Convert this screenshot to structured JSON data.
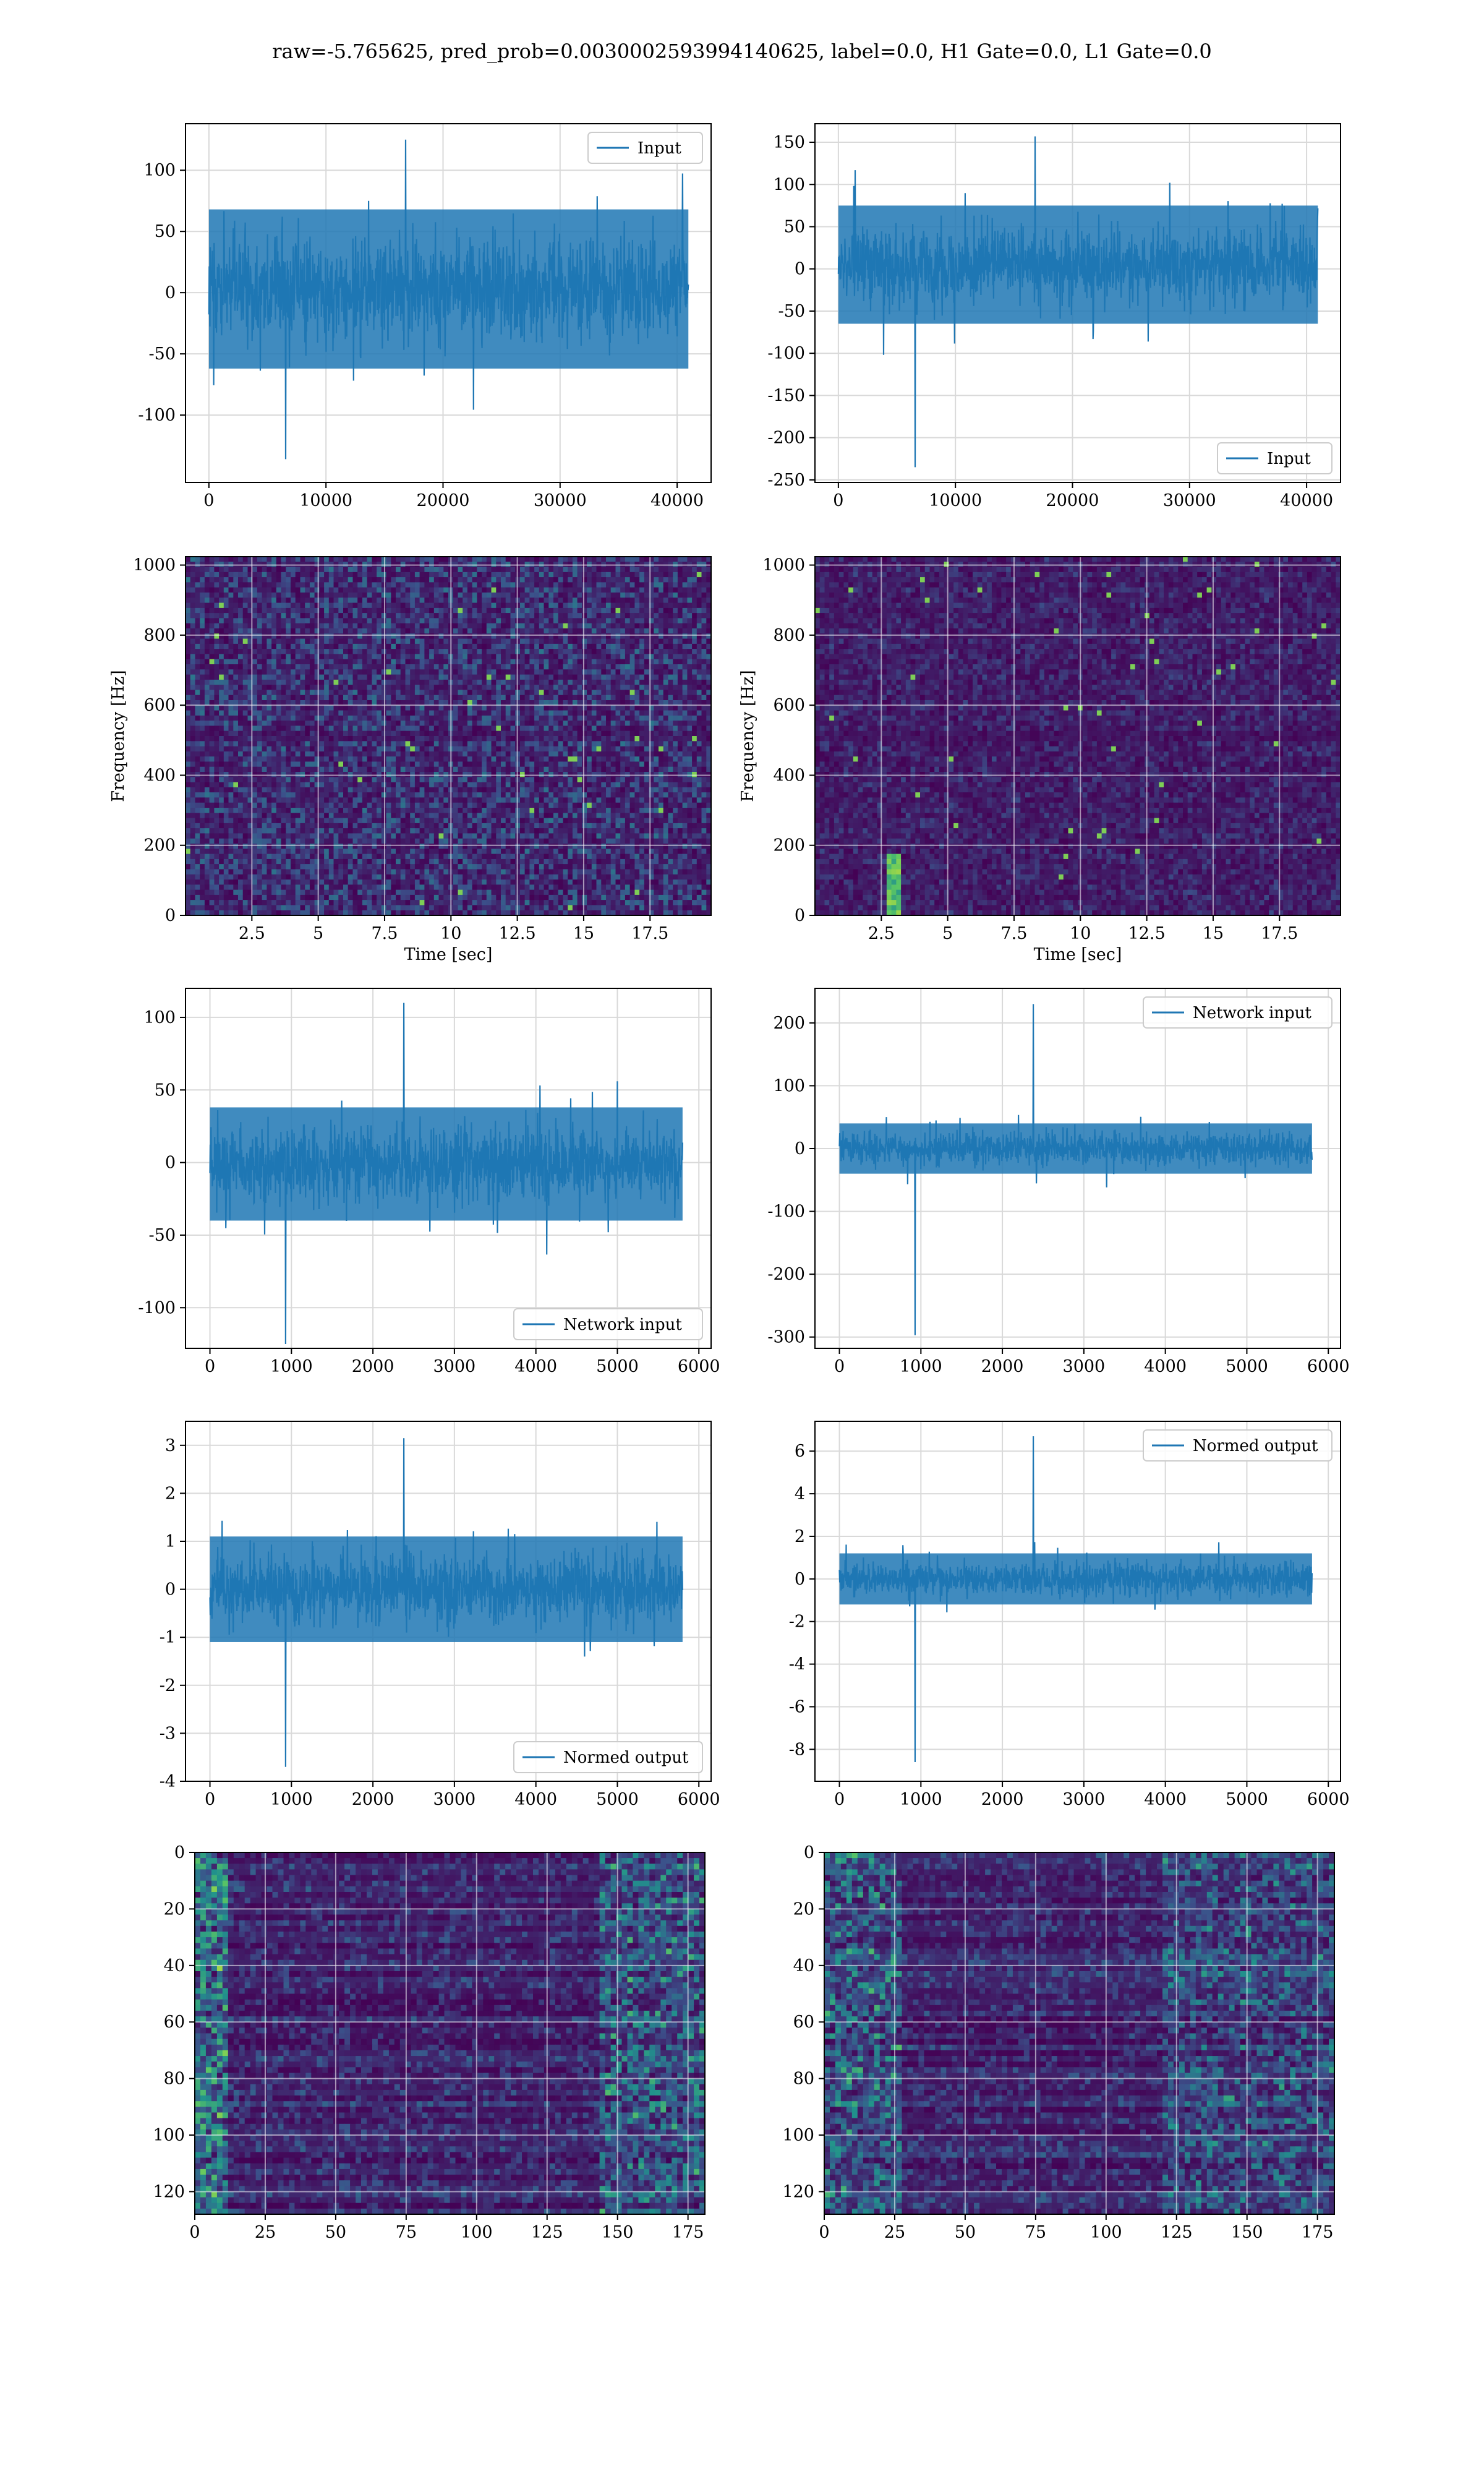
{
  "title": "raw=-5.765625, pred_prob=0.0030002593994140625, label=0.0, H1 Gate=0.0, L1 Gate=0.0",
  "colors": {
    "series": "#1f77b4",
    "grid": "#d9d9d9",
    "viridis_low": "#440154",
    "viridis_mid": "#21918c",
    "viridis_high": "#fde725"
  },
  "chart_data": [
    {
      "id": "p1",
      "type": "line",
      "style": "dense_noise",
      "legend": "Input",
      "legend_position": "upper right",
      "xlim": [
        -2000,
        42900
      ],
      "ylim": [
        -155,
        138
      ],
      "xticks": [
        0,
        10000,
        20000,
        30000,
        40000
      ],
      "yticks": [
        -100,
        -50,
        0,
        50,
        100
      ],
      "xlabel": "",
      "ylabel": "",
      "n_points": 40960,
      "band": [
        -62,
        68
      ],
      "extremes": [
        -136,
        125
      ],
      "grid": true
    },
    {
      "id": "p2",
      "type": "line",
      "style": "dense_noise",
      "legend": "Input",
      "legend_position": "lower right",
      "xlim": [
        -2000,
        42900
      ],
      "ylim": [
        -253,
        172
      ],
      "xticks": [
        0,
        10000,
        20000,
        30000,
        40000
      ],
      "yticks": [
        -250,
        -200,
        -150,
        -100,
        -50,
        0,
        50,
        100,
        150
      ],
      "xlabel": "",
      "ylabel": "",
      "n_points": 40960,
      "band": [
        -65,
        75
      ],
      "extremes": [
        -235,
        157
      ],
      "grid": true
    },
    {
      "id": "p3",
      "type": "heatmap",
      "style": "spectrogram",
      "xlabel": "Time [sec]",
      "ylabel": "Frequency [Hz]",
      "xlim": [
        0,
        19.8
      ],
      "ylim": [
        0,
        1024
      ],
      "xticks": [
        2.5,
        5.0,
        7.5,
        10.0,
        12.5,
        15.0,
        17.5
      ],
      "yticks": [
        0,
        200,
        400,
        600,
        800,
        1000
      ],
      "grid": true
    },
    {
      "id": "p4",
      "type": "heatmap",
      "style": "spectrogram",
      "xlabel": "Time [sec]",
      "ylabel": "Frequency [Hz]",
      "xlim": [
        0,
        19.8
      ],
      "ylim": [
        0,
        1024
      ],
      "xticks": [
        2.5,
        5.0,
        7.5,
        10.0,
        12.5,
        15.0,
        17.5
      ],
      "yticks": [
        0,
        200,
        400,
        600,
        800,
        1000
      ],
      "grid": true
    },
    {
      "id": "p5",
      "type": "line",
      "style": "dense_noise",
      "legend": "Network input",
      "legend_position": "lower right",
      "xlim": [
        -300,
        6150
      ],
      "ylim": [
        -128,
        120
      ],
      "xticks": [
        0,
        1000,
        2000,
        3000,
        4000,
        5000,
        6000
      ],
      "yticks": [
        -100,
        -50,
        0,
        50,
        100
      ],
      "xlabel": "",
      "ylabel": "",
      "n_points": 5800,
      "band": [
        -40,
        38
      ],
      "extremes": [
        -125,
        110
      ],
      "grid": true
    },
    {
      "id": "p6",
      "type": "line",
      "style": "dense_noise",
      "legend": "Network input",
      "legend_position": "upper right",
      "xlim": [
        -300,
        6150
      ],
      "ylim": [
        -318,
        255
      ],
      "xticks": [
        0,
        1000,
        2000,
        3000,
        4000,
        5000,
        6000
      ],
      "yticks": [
        -300,
        -200,
        -100,
        0,
        100,
        200
      ],
      "xlabel": "",
      "ylabel": "",
      "n_points": 5800,
      "band": [
        -40,
        40
      ],
      "extremes": [
        -297,
        230
      ],
      "grid": true
    },
    {
      "id": "p7",
      "type": "line",
      "style": "dense_noise",
      "legend": "Normed output",
      "legend_position": "lower right",
      "xlim": [
        -300,
        6150
      ],
      "ylim": [
        -4,
        3.5
      ],
      "xticks": [
        0,
        1000,
        2000,
        3000,
        4000,
        5000,
        6000
      ],
      "yticks": [
        -4,
        -3,
        -2,
        -1,
        0,
        1,
        2,
        3
      ],
      "xlabel": "",
      "ylabel": "",
      "n_points": 5800,
      "band": [
        -1.1,
        1.1
      ],
      "extremes": [
        -3.7,
        3.15
      ],
      "grid": true
    },
    {
      "id": "p8",
      "type": "line",
      "style": "dense_noise",
      "legend": "Normed output",
      "legend_position": "upper right",
      "xlim": [
        -300,
        6150
      ],
      "ylim": [
        -9.5,
        7.4
      ],
      "xticks": [
        0,
        1000,
        2000,
        3000,
        4000,
        5000,
        6000
      ],
      "yticks": [
        -8,
        -6,
        -4,
        -2,
        0,
        2,
        4,
        6
      ],
      "xlabel": "",
      "ylabel": "",
      "n_points": 5800,
      "band": [
        -1.2,
        1.2
      ],
      "extremes": [
        -8.6,
        6.7
      ],
      "grid": true
    },
    {
      "id": "p9",
      "type": "heatmap",
      "style": "feature_map",
      "xlabel": "",
      "ylabel": "",
      "xlim": [
        0,
        181
      ],
      "ylim": [
        128,
        0
      ],
      "xticks": [
        0,
        25,
        50,
        75,
        100,
        125,
        150,
        175
      ],
      "yticks": [
        0,
        20,
        40,
        60,
        80,
        100,
        120
      ],
      "grid": true
    },
    {
      "id": "p10",
      "type": "heatmap",
      "style": "feature_map",
      "xlabel": "",
      "ylabel": "",
      "xlim": [
        0,
        181
      ],
      "ylim": [
        128,
        0
      ],
      "xticks": [
        0,
        25,
        50,
        75,
        100,
        125,
        150,
        175
      ],
      "yticks": [
        0,
        20,
        40,
        60,
        80,
        100,
        120
      ],
      "grid": true
    }
  ]
}
